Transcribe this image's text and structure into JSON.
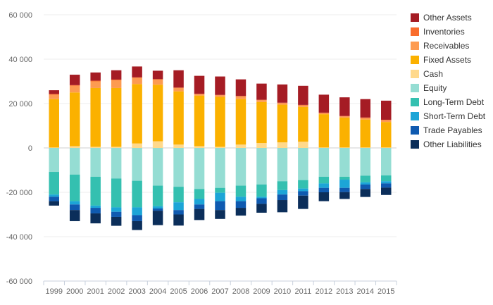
{
  "chart_data": {
    "type": "bar",
    "stacked": true,
    "title": "",
    "xlabel": "",
    "ylabel": "",
    "ylim": [
      -60000,
      60000
    ],
    "y_ticks": [
      60000,
      40000,
      20000,
      0,
      -20000,
      -40000,
      -60000
    ],
    "y_tick_labels": [
      "60 000",
      "40 000",
      "20 000",
      "0",
      "-20 000",
      "-40 000",
      "-60 000"
    ],
    "grid": true,
    "legend_position": "right",
    "categories": [
      "1999",
      "2000",
      "2001",
      "2002",
      "2003",
      "2004",
      "2005",
      "2006",
      "2007",
      "2008",
      "2009",
      "2010",
      "2011",
      "2012",
      "2013",
      "2014",
      "2015"
    ],
    "series": [
      {
        "name": "Cash",
        "color": "#ffd98c",
        "side": "positive",
        "values": [
          200,
          800,
          500,
          500,
          2000,
          3000,
          1500,
          800,
          500,
          1500,
          2200,
          2500,
          2800,
          200,
          200,
          200,
          200
        ]
      },
      {
        "name": "Fixed Assets",
        "color": "#fbb100",
        "side": "positive",
        "values": [
          21800,
          24200,
          26500,
          26500,
          26800,
          25500,
          24000,
          22800,
          22500,
          20500,
          18500,
          17000,
          15700,
          15000,
          13500,
          12600,
          11500
        ]
      },
      {
        "name": "Receivables",
        "color": "#fd9b51",
        "side": "positive",
        "values": [
          2000,
          3000,
          3000,
          3500,
          2800,
          2300,
          1500,
          600,
          700,
          1200,
          800,
          700,
          700,
          500,
          500,
          700,
          800
        ]
      },
      {
        "name": "Inventories",
        "color": "#f96c2c",
        "side": "positive",
        "values": [
          300,
          300,
          300,
          300,
          200,
          200,
          200,
          200,
          200,
          200,
          200,
          200,
          200,
          200,
          200,
          200,
          200
        ]
      },
      {
        "name": "Other Assets",
        "color": "#a51c24",
        "side": "positive",
        "values": [
          1700,
          4700,
          3700,
          4200,
          4900,
          3800,
          7800,
          8100,
          8300,
          7500,
          7300,
          8200,
          8600,
          8100,
          8400,
          8300,
          8600
        ]
      },
      {
        "name": "Equity",
        "color": "#95ddd3",
        "side": "negative",
        "values": [
          -10800,
          -12000,
          -13000,
          -13800,
          -14800,
          -17000,
          -17500,
          -18500,
          -18000,
          -17000,
          -16500,
          -15000,
          -14500,
          -13000,
          -13000,
          -12500,
          -12400
        ]
      },
      {
        "name": "Long-Term Debt",
        "color": "#34c0b0",
        "side": "negative",
        "values": [
          -10200,
          -12000,
          -13000,
          -13000,
          -12000,
          -9300,
          -7000,
          -4500,
          -2200,
          -5000,
          -5500,
          -4000,
          -3800,
          -3000,
          -1300,
          -3000,
          -2600
        ]
      },
      {
        "name": "Short-Term Debt",
        "color": "#1ca5d7",
        "side": "negative",
        "values": [
          -1000,
          -1500,
          -1000,
          -2000,
          -3500,
          -1000,
          -3500,
          -2500,
          -3800,
          -2000,
          -700,
          -2000,
          -1200,
          -2000,
          -3700,
          -1000,
          -1000
        ]
      },
      {
        "name": "Trade Payables",
        "color": "#0f5ab0",
        "side": "negative",
        "values": [
          -2000,
          -2500,
          -2500,
          -2300,
          -2700,
          -1000,
          -2000,
          -2000,
          -4000,
          -3000,
          -2500,
          -2500,
          -2000,
          -2000,
          -1900,
          -2000,
          -1900
        ]
      },
      {
        "name": "Other Liabilities",
        "color": "#0b2e5a",
        "side": "negative",
        "values": [
          -2000,
          -5000,
          -4500,
          -4000,
          -4000,
          -6500,
          -5000,
          -5000,
          -4000,
          -3500,
          -4000,
          -5500,
          -6000,
          -4000,
          -3100,
          -3600,
          -3300
        ]
      }
    ],
    "legend_order": [
      "Other Assets",
      "Inventories",
      "Receivables",
      "Fixed Assets",
      "Cash",
      "Equity",
      "Long-Term Debt",
      "Short-Term Debt",
      "Trade Payables",
      "Other Liabilities"
    ]
  }
}
